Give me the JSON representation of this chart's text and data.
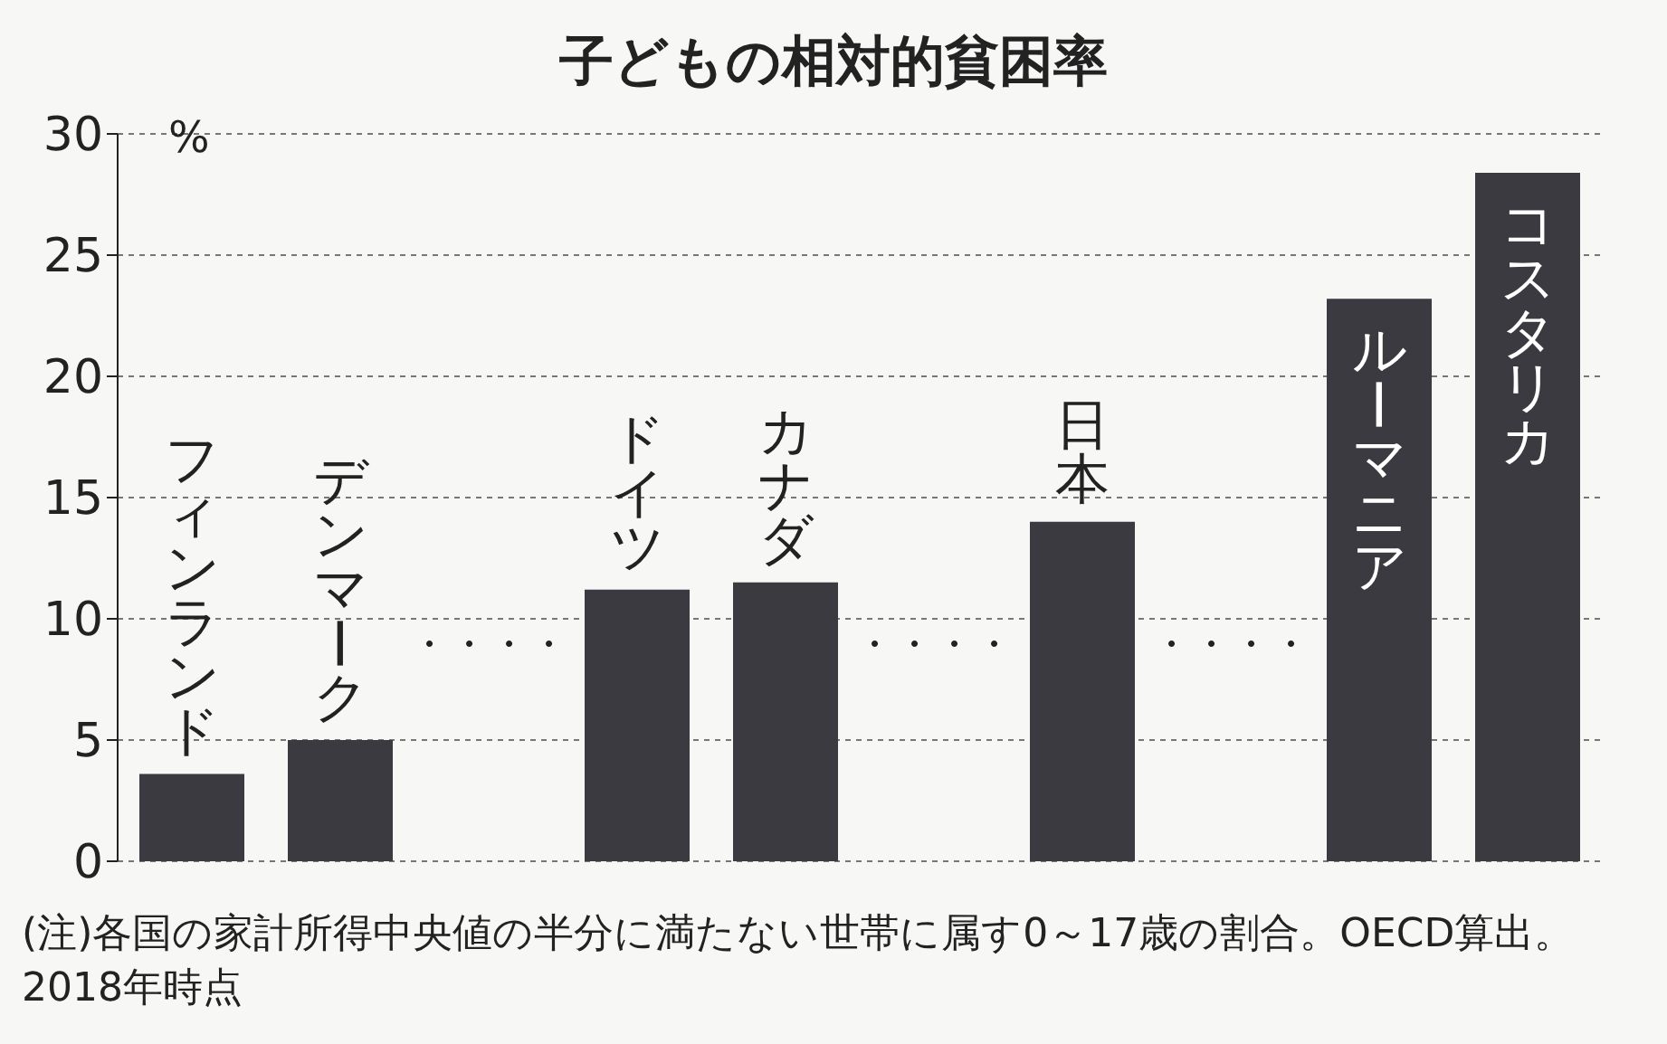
{
  "chart_data": {
    "type": "bar",
    "title": "子どもの相対的貧困率",
    "ylabel": "%",
    "categories": [
      "フィンランド",
      "デンマーク",
      "・・・・",
      "ドイツ",
      "カナダ",
      "・・・・",
      "日本",
      "・・・・",
      "ルーマニア",
      "コスタリカ"
    ],
    "values": [
      3.6,
      5.0,
      null,
      11.2,
      11.5,
      null,
      14.0,
      null,
      23.2,
      28.4
    ],
    "color": "#3a3a40",
    "ylim": [
      0,
      30
    ],
    "yticks": [
      0,
      5,
      10,
      15,
      20,
      25,
      30
    ],
    "grid": "y",
    "annotations": [
      "(注)各国の家計所得中央値の半分に満たない世帯に属す0～17歳の割合。OECD算出。2018年時点"
    ]
  }
}
